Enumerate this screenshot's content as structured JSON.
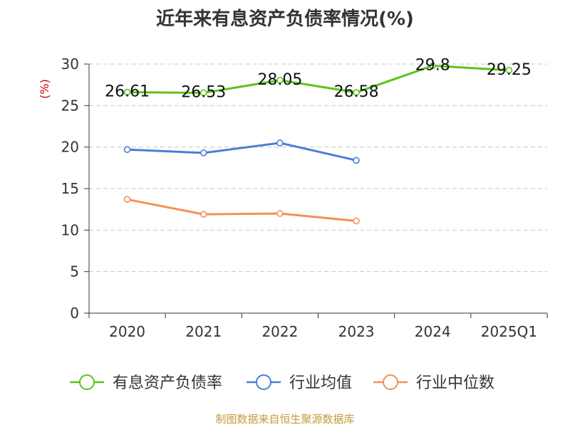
{
  "title": "近年来有息资产负债率情况(%)",
  "source": "制图数据来自恒生聚源数据库",
  "chart_data": {
    "type": "line",
    "title": "近年来有息资产负债率情况(%)",
    "ylabel": "(%)",
    "xlabel": "",
    "categories": [
      "2020",
      "2021",
      "2022",
      "2023",
      "2024",
      "2025Q1"
    ],
    "ylim": [
      0,
      30
    ],
    "yticks": [
      0,
      5,
      10,
      15,
      20,
      25,
      30
    ],
    "grid": true,
    "legend_position": "bottom",
    "series": [
      {
        "name": "有息资产负债率",
        "color": "#5bc41f",
        "labels": true,
        "values": [
          26.61,
          26.53,
          28.05,
          26.58,
          29.8,
          29.25
        ]
      },
      {
        "name": "行业均值",
        "color": "#4a7fd6",
        "labels": false,
        "values": [
          19.7,
          19.3,
          20.5,
          18.4,
          null,
          null
        ]
      },
      {
        "name": "行业中位数",
        "color": "#f58f55",
        "labels": false,
        "values": [
          13.7,
          11.9,
          12.0,
          11.1,
          null,
          null
        ]
      }
    ]
  }
}
